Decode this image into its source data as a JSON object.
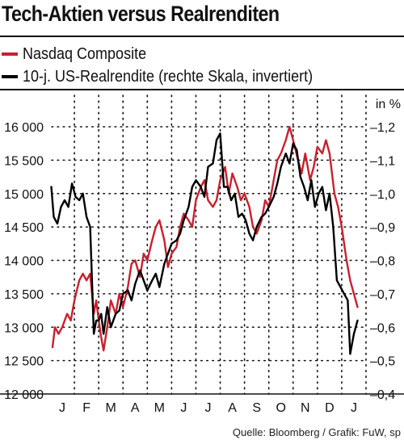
{
  "title": "Tech-Aktien versus Realrenditen",
  "source": "Quelle: Bloomberg / Grafik: FuW, sp",
  "colors": {
    "nasdaq": "#c8202f",
    "realrendite": "#000000",
    "grid": "#000000"
  },
  "chart_data": {
    "type": "line",
    "unit_label": "in %",
    "months": [
      "J",
      "F",
      "M",
      "A",
      "M",
      "J",
      "J",
      "A",
      "S",
      "O",
      "N",
      "D",
      "J"
    ],
    "left_axis": {
      "ticks": [
        "16 000",
        "15 500",
        "15 000",
        "14 500",
        "14 000",
        "13 500",
        "13 000",
        "12 500",
        "12 000"
      ],
      "min": 12000,
      "max": 16000
    },
    "right_axis": {
      "ticks": [
        "–1,2",
        "–1,1",
        "–1,0",
        "–0,9",
        "–0,8",
        "–0,7",
        "–0,6",
        "–0,5",
        "–0,4"
      ],
      "min": -0.4,
      "max": -1.2,
      "inverted": true
    },
    "x_range": [
      0,
      13
    ],
    "series": [
      {
        "name": "Nasdaq Composite",
        "color": "#c8202f",
        "axis": "left",
        "points": [
          [
            0.1,
            12700
          ],
          [
            0.2,
            13000
          ],
          [
            0.35,
            12900
          ],
          [
            0.5,
            13000
          ],
          [
            0.7,
            13200
          ],
          [
            0.85,
            13100
          ],
          [
            1.0,
            13400
          ],
          [
            1.2,
            13700
          ],
          [
            1.35,
            13800
          ],
          [
            1.5,
            13700
          ],
          [
            1.65,
            13800
          ],
          [
            1.8,
            13200
          ],
          [
            1.9,
            13400
          ],
          [
            2.0,
            13100
          ],
          [
            2.1,
            12850
          ],
          [
            2.2,
            12650
          ],
          [
            2.35,
            13000
          ],
          [
            2.5,
            13400
          ],
          [
            2.7,
            13200
          ],
          [
            2.85,
            13500
          ],
          [
            3.0,
            13300
          ],
          [
            3.2,
            13600
          ],
          [
            3.35,
            13950
          ],
          [
            3.5,
            14000
          ],
          [
            3.7,
            13750
          ],
          [
            3.85,
            14100
          ],
          [
            4.0,
            14000
          ],
          [
            4.2,
            14300
          ],
          [
            4.35,
            14500
          ],
          [
            4.5,
            14600
          ],
          [
            4.7,
            14300
          ],
          [
            4.85,
            13900
          ],
          [
            5.0,
            14100
          ],
          [
            5.2,
            14200
          ],
          [
            5.35,
            14500
          ],
          [
            5.5,
            14700
          ],
          [
            5.7,
            14600
          ],
          [
            5.85,
            14500
          ],
          [
            6.0,
            14900
          ],
          [
            6.2,
            15100
          ],
          [
            6.35,
            15200
          ],
          [
            6.5,
            14900
          ],
          [
            6.7,
            14800
          ],
          [
            6.85,
            14900
          ],
          [
            7.0,
            15200
          ],
          [
            7.2,
            15400
          ],
          [
            7.35,
            15000
          ],
          [
            7.5,
            15300
          ],
          [
            7.7,
            15100
          ],
          [
            7.85,
            14900
          ],
          [
            8.0,
            15000
          ],
          [
            8.2,
            14800
          ],
          [
            8.35,
            14500
          ],
          [
            8.5,
            14400
          ],
          [
            8.7,
            14600
          ],
          [
            8.85,
            14900
          ],
          [
            9.0,
            14800
          ],
          [
            9.2,
            15200
          ],
          [
            9.35,
            15500
          ],
          [
            9.5,
            15600
          ],
          [
            9.7,
            15800
          ],
          [
            9.85,
            16000
          ],
          [
            10.0,
            15800
          ],
          [
            10.2,
            15500
          ],
          [
            10.35,
            15300
          ],
          [
            10.5,
            15600
          ],
          [
            10.7,
            15200
          ],
          [
            10.85,
            15400
          ],
          [
            11.0,
            15700
          ],
          [
            11.2,
            15600
          ],
          [
            11.35,
            15800
          ],
          [
            11.5,
            15600
          ],
          [
            11.7,
            15000
          ],
          [
            11.85,
            14800
          ],
          [
            12.0,
            14500
          ],
          [
            12.2,
            14000
          ],
          [
            12.35,
            13700
          ],
          [
            12.5,
            13500
          ],
          [
            12.65,
            13300
          ]
        ]
      },
      {
        "name": "10-j. US-Realrendite (rechte Skala, invertiert)",
        "color": "#000000",
        "axis": "right",
        "points": [
          [
            0.05,
            -1.02
          ],
          [
            0.15,
            -0.93
          ],
          [
            0.3,
            -0.91
          ],
          [
            0.45,
            -0.96
          ],
          [
            0.6,
            -0.98
          ],
          [
            0.75,
            -0.96
          ],
          [
            0.9,
            -1.03
          ],
          [
            1.05,
            -0.99
          ],
          [
            1.2,
            -0.98
          ],
          [
            1.35,
            -1.0
          ],
          [
            1.5,
            -0.93
          ],
          [
            1.65,
            -0.9
          ],
          [
            1.8,
            -0.58
          ],
          [
            1.9,
            -0.62
          ],
          [
            2.0,
            -0.62
          ],
          [
            2.1,
            -0.64
          ],
          [
            2.2,
            -0.58
          ],
          [
            2.35,
            -0.66
          ],
          [
            2.5,
            -0.6
          ],
          [
            2.7,
            -0.64
          ],
          [
            2.85,
            -0.65
          ],
          [
            3.0,
            -0.7
          ],
          [
            3.2,
            -0.71
          ],
          [
            3.35,
            -0.68
          ],
          [
            3.5,
            -0.73
          ],
          [
            3.7,
            -0.77
          ],
          [
            3.85,
            -0.74
          ],
          [
            4.0,
            -0.71
          ],
          [
            4.2,
            -0.74
          ],
          [
            4.35,
            -0.76
          ],
          [
            4.5,
            -0.72
          ],
          [
            4.7,
            -0.79
          ],
          [
            4.85,
            -0.82
          ],
          [
            5.0,
            -0.85
          ],
          [
            5.2,
            -0.86
          ],
          [
            5.35,
            -0.88
          ],
          [
            5.5,
            -0.92
          ],
          [
            5.7,
            -0.96
          ],
          [
            5.85,
            -1.02
          ],
          [
            6.0,
            -1.04
          ],
          [
            6.2,
            -1.02
          ],
          [
            6.35,
            -0.99
          ],
          [
            6.5,
            -1.08
          ],
          [
            6.7,
            -1.09
          ],
          [
            6.85,
            -1.16
          ],
          [
            7.0,
            -1.18
          ],
          [
            7.15,
            -1.02
          ],
          [
            7.3,
            -1.02
          ],
          [
            7.45,
            -0.98
          ],
          [
            7.6,
            -1.0
          ],
          [
            7.75,
            -0.93
          ],
          [
            7.9,
            -0.94
          ],
          [
            8.05,
            -0.92
          ],
          [
            8.2,
            -0.88
          ],
          [
            8.35,
            -0.86
          ],
          [
            8.5,
            -0.9
          ],
          [
            8.7,
            -0.93
          ],
          [
            8.85,
            -0.94
          ],
          [
            9.0,
            -0.96
          ],
          [
            9.2,
            -0.99
          ],
          [
            9.35,
            -1.03
          ],
          [
            9.5,
            -1.08
          ],
          [
            9.7,
            -1.12
          ],
          [
            9.85,
            -1.09
          ],
          [
            10.0,
            -1.15
          ],
          [
            10.15,
            -1.13
          ],
          [
            10.3,
            -1.05
          ],
          [
            10.45,
            -1.02
          ],
          [
            10.6,
            -0.98
          ],
          [
            10.75,
            -1.04
          ],
          [
            10.9,
            -0.96
          ],
          [
            11.05,
            -1.0
          ],
          [
            11.2,
            -1.02
          ],
          [
            11.35,
            -0.95
          ],
          [
            11.5,
            -1.0
          ],
          [
            11.65,
            -0.9
          ],
          [
            11.8,
            -0.74
          ],
          [
            11.95,
            -0.72
          ],
          [
            12.1,
            -0.7
          ],
          [
            12.25,
            -0.68
          ],
          [
            12.35,
            -0.52
          ],
          [
            12.5,
            -0.58
          ],
          [
            12.65,
            -0.62
          ]
        ]
      }
    ]
  },
  "legend": [
    {
      "label": "Nasdaq Composite",
      "color": "#c8202f"
    },
    {
      "label": "10-j. US-Realrendite (rechte Skala, invertiert)",
      "color": "#000000"
    }
  ]
}
